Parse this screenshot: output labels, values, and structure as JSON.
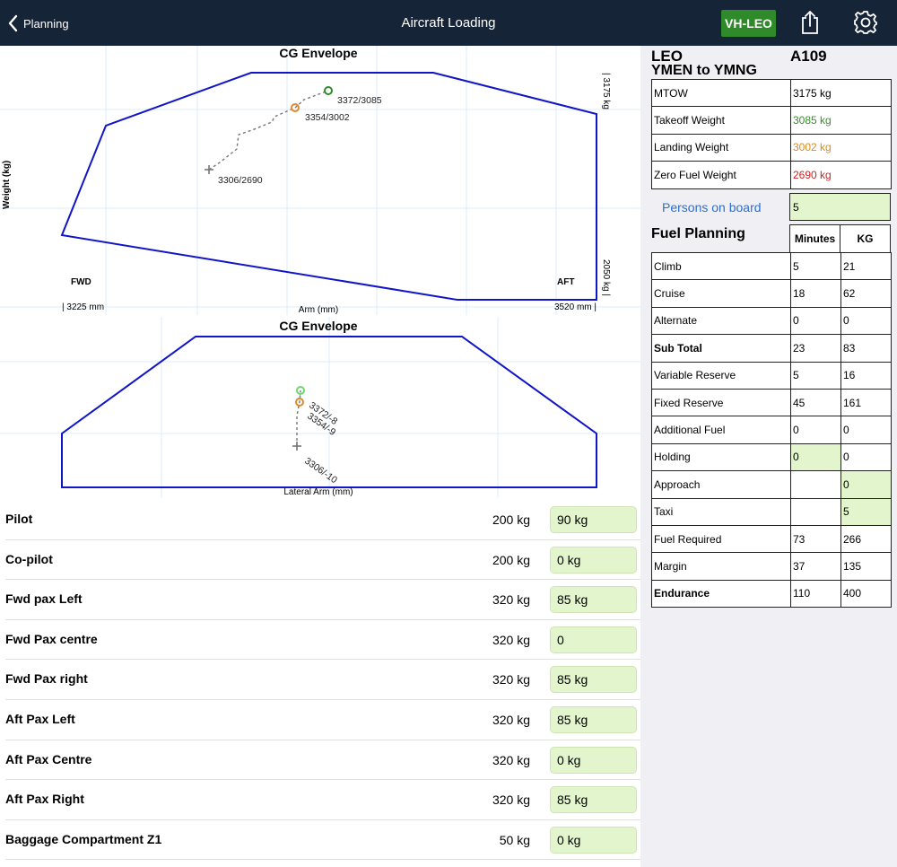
{
  "nav": {
    "back_label": "Planning",
    "title": "Aircraft Loading",
    "registration": "VH-LEO",
    "share_icon": "share-icon",
    "settings_icon": "gear-icon"
  },
  "cg_chart": {
    "title": "CG Envelope",
    "ylabel": "Weight (kg)",
    "xlabel": "Arm (mm)",
    "fwd_label": "FWD",
    "aft_label": "AFT",
    "xmin_label": "| 3225 mm",
    "xmax_label": "3520 mm |",
    "ymax_label": "| 3175 kg",
    "ymin_label": "2050 kg |",
    "points": [
      {
        "label": "3372/3085"
      },
      {
        "label": "3354/3002"
      },
      {
        "label": "3306/2690"
      }
    ]
  },
  "lat_chart": {
    "title": "CG Envelope",
    "xlabel": "Lateral Arm (mm)",
    "points": [
      {
        "label": "3372/-8"
      },
      {
        "label": "3354/-9"
      },
      {
        "label": "3306/-10"
      }
    ]
  },
  "loading": [
    {
      "label": "Pilot",
      "limit": "200 kg",
      "value": "90 kg"
    },
    {
      "label": "Co-pilot",
      "limit": "200 kg",
      "value": "0 kg"
    },
    {
      "label": "Fwd pax Left",
      "limit": "320 kg",
      "value": "85 kg"
    },
    {
      "label": "Fwd Pax centre",
      "limit": "320 kg",
      "value": "0"
    },
    {
      "label": "Fwd Pax right",
      "limit": "320 kg",
      "value": "85 kg"
    },
    {
      "label": "Aft Pax Left",
      "limit": "320 kg",
      "value": "85 kg"
    },
    {
      "label": "Aft Pax Centre",
      "limit": "320 kg",
      "value": "0 kg"
    },
    {
      "label": "Aft Pax Right",
      "limit": "320 kg",
      "value": "85 kg"
    },
    {
      "label": "Baggage Compartment Z1",
      "limit": "50 kg",
      "value": "0 kg"
    }
  ],
  "summary": {
    "reg": "LEO",
    "type": "A109",
    "route": "YMEN to YMNG",
    "weights": [
      {
        "label": "MTOW",
        "value": "3175 kg",
        "color": "#000000"
      },
      {
        "label": "Takeoff Weight",
        "value": "3085 kg",
        "color": "#3b8b2f"
      },
      {
        "label": "Landing Weight",
        "value": "3002 kg",
        "color": "#d98c1c"
      },
      {
        "label": "Zero Fuel Weight",
        "value": "2690 kg",
        "color": "#d32020"
      }
    ],
    "pob_label": "Persons on board",
    "pob_value": "5"
  },
  "fuel": {
    "title": "Fuel Planning",
    "col_minutes": "Minutes",
    "col_kg": "KG",
    "rows": [
      {
        "label": "Climb",
        "minutes": "5",
        "kg": "21"
      },
      {
        "label": "Cruise",
        "minutes": "18",
        "kg": "62"
      },
      {
        "label": "Alternate",
        "minutes": "0",
        "kg": "0"
      },
      {
        "label": "Sub Total",
        "minutes": "23",
        "kg": "83"
      },
      {
        "label": "Variable Reserve",
        "minutes": "5",
        "kg": "16"
      },
      {
        "label": "Fixed Reserve",
        "minutes": "45",
        "kg": "161"
      },
      {
        "label": "Additional Fuel",
        "minutes": "0",
        "kg": "0"
      },
      {
        "label": "Holding",
        "minutes": "0",
        "kg": "0"
      },
      {
        "label": "Approach",
        "minutes": "",
        "kg": "0"
      },
      {
        "label": "Taxi",
        "minutes": "",
        "kg": "5"
      },
      {
        "label": "Fuel Required",
        "minutes": "73",
        "kg": "266"
      },
      {
        "label": "Margin",
        "minutes": "37",
        "kg": "135"
      },
      {
        "label": "Endurance",
        "minutes": "110",
        "kg": "400"
      }
    ]
  }
}
